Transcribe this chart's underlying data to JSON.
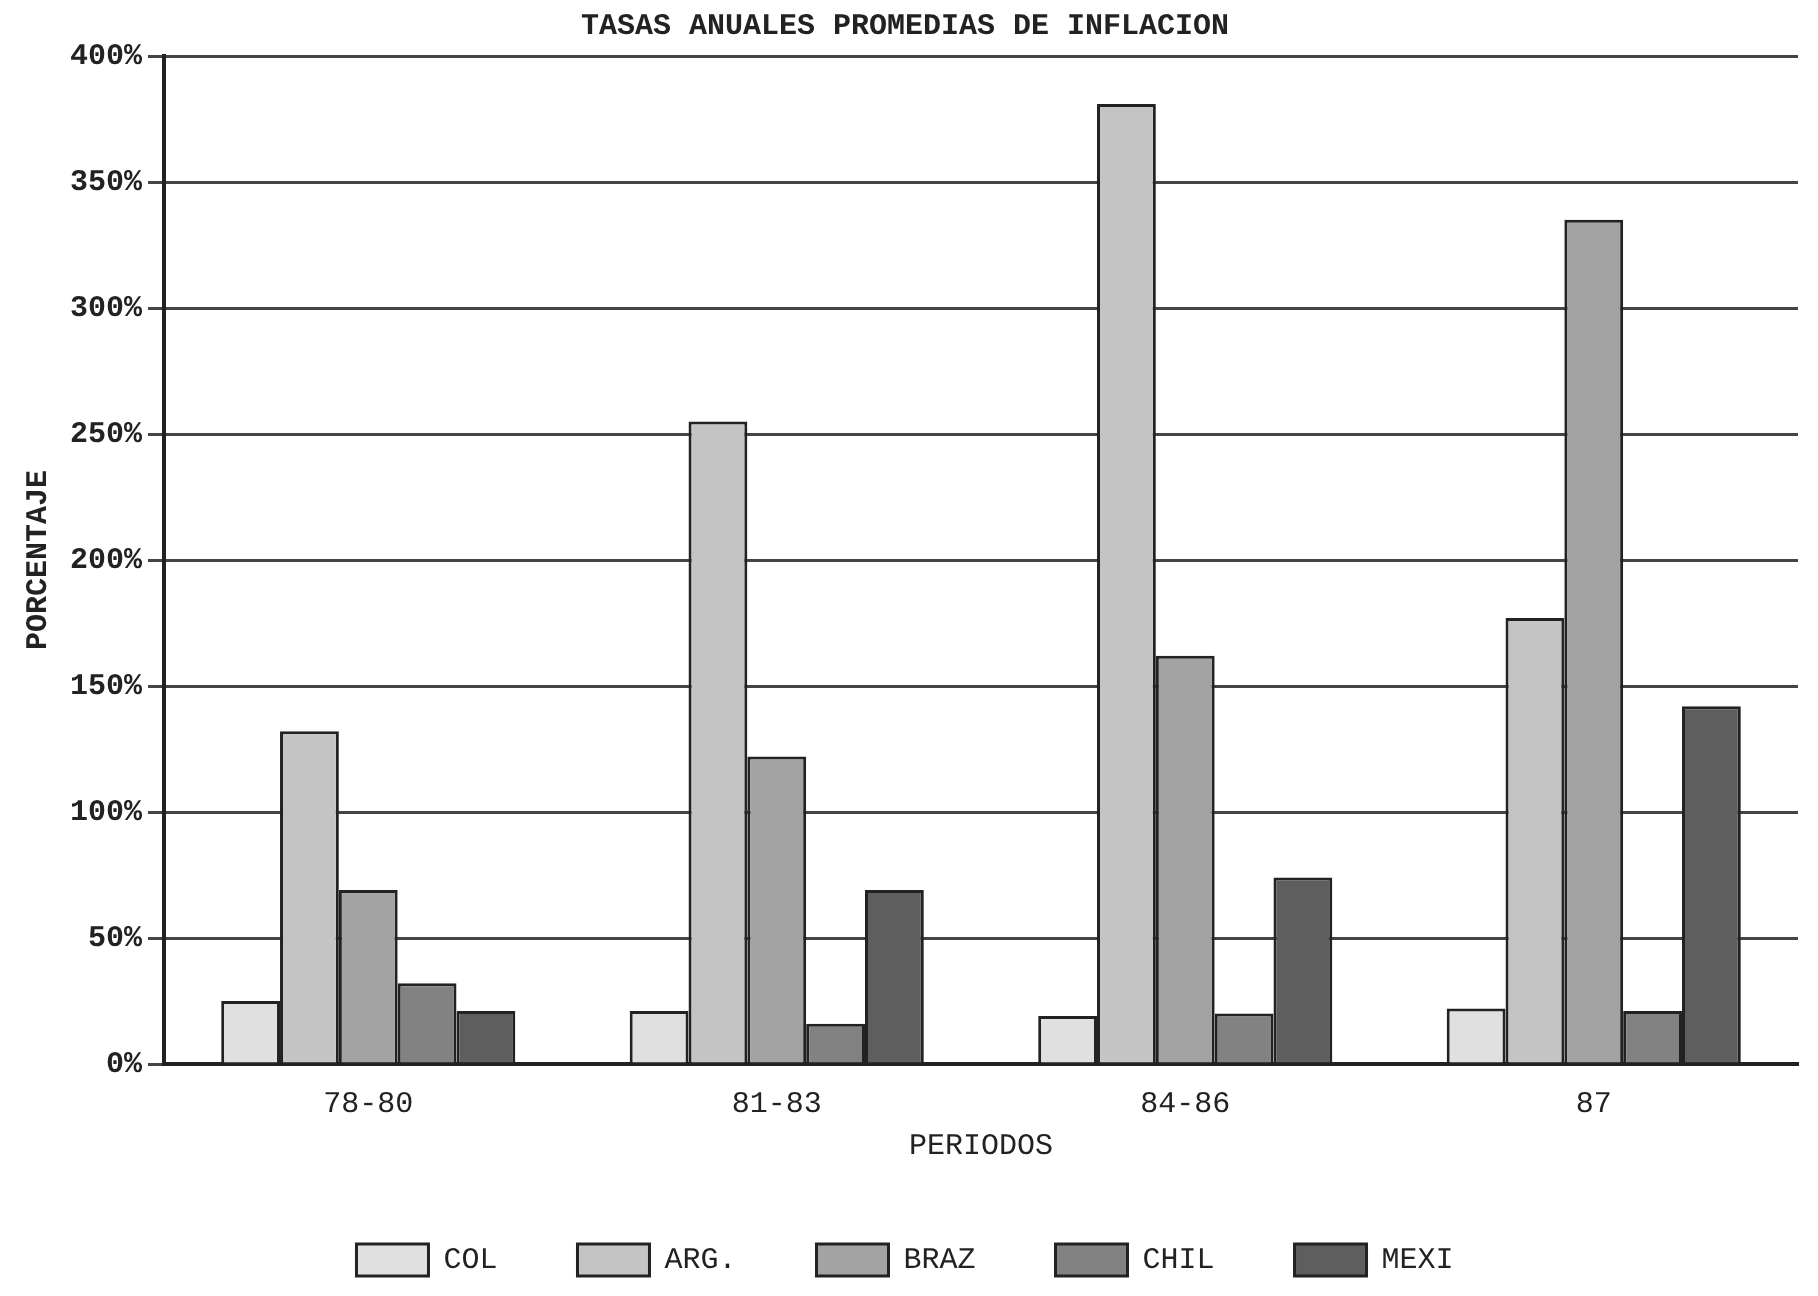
{
  "chart_data": {
    "type": "bar",
    "title": "TASAS ANUALES PROMEDIAS DE INFLACION",
    "xlabel": "PERIODOS",
    "ylabel": "PORCENTAJE",
    "categories": [
      "78-80",
      "81-83",
      "84-86",
      "87"
    ],
    "series": [
      {
        "name": "COL",
        "color": "#e0e0e0",
        "values": [
          25,
          21,
          19,
          22
        ]
      },
      {
        "name": "ARG.",
        "color": "#c4c4c4",
        "values": [
          132,
          255,
          381,
          177
        ]
      },
      {
        "name": "BRAZ",
        "color": "#a3a3a3",
        "values": [
          69,
          122,
          162,
          335
        ]
      },
      {
        "name": "CHIL",
        "color": "#828282",
        "values": [
          32,
          16,
          20,
          21
        ]
      },
      {
        "name": "MEXI",
        "color": "#5e5e5e",
        "values": [
          21,
          69,
          74,
          142
        ]
      }
    ],
    "ylim": [
      0,
      400
    ],
    "yticks": [
      {
        "value": 0,
        "label": "0%"
      },
      {
        "value": 50,
        "label": "50%"
      },
      {
        "value": 100,
        "label": "100%"
      },
      {
        "value": 150,
        "label": "150%"
      },
      {
        "value": 200,
        "label": "200%"
      },
      {
        "value": 250,
        "label": "250%"
      },
      {
        "value": 300,
        "label": "300%"
      },
      {
        "value": 350,
        "label": "350%"
      },
      {
        "value": 400,
        "label": "400%"
      }
    ],
    "grid": "y",
    "legend": "bottom"
  }
}
